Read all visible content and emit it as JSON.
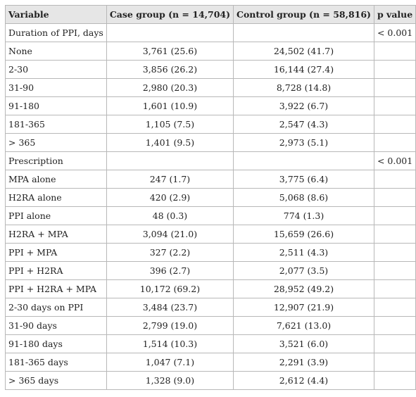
{
  "header": {
    "variable": "Variable",
    "case_group": "Case group (n = 14,704)",
    "control_group": "Control group (n = 58,816)",
    "p_value": "p value"
  },
  "rows": [
    {
      "variable": "Duration of PPI, days",
      "case": "",
      "control": "",
      "p": "< 0.001"
    },
    {
      "variable": "None",
      "case": "3,761 (25.6)",
      "control": "24,502 (41.7)",
      "p": ""
    },
    {
      "variable": "2-30",
      "case": "3,856 (26.2)",
      "control": "16,144 (27.4)",
      "p": ""
    },
    {
      "variable": "31-90",
      "case": "2,980 (20.3)",
      "control": "8,728 (14.8)",
      "p": ""
    },
    {
      "variable": "91-180",
      "case": "1,601 (10.9)",
      "control": "3,922 (6.7)",
      "p": ""
    },
    {
      "variable": "181-365",
      "case": "1,105 (7.5)",
      "control": "2,547 (4.3)",
      "p": ""
    },
    {
      "variable": "> 365",
      "case": "1,401 (9.5)",
      "control": "2,973 (5.1)",
      "p": ""
    },
    {
      "variable": "Prescription",
      "case": "",
      "control": "",
      "p": "< 0.001"
    },
    {
      "variable": "MPA alone",
      "case": "247 (1.7)",
      "control": "3,775 (6.4)",
      "p": ""
    },
    {
      "variable": "H2RA alone",
      "case": "420 (2.9)",
      "control": "5,068 (8.6)",
      "p": ""
    },
    {
      "variable": "PPI alone",
      "case": "48 (0.3)",
      "control": "774 (1.3)",
      "p": ""
    },
    {
      "variable": "H2RA + MPA",
      "case": "3,094 (21.0)",
      "control": "15,659 (26.6)",
      "p": ""
    },
    {
      "variable": "PPI + MPA",
      "case": "327 (2.2)",
      "control": "2,511 (4.3)",
      "p": ""
    },
    {
      "variable": "PPI + H2RA",
      "case": "396 (2.7)",
      "control": "2,077 (3.5)",
      "p": ""
    },
    {
      "variable": "PPI + H2RA + MPA",
      "case": "10,172 (69.2)",
      "control": "28,952 (49.2)",
      "p": ""
    },
    {
      "variable": "2-30 days on PPI",
      "case": "3,484 (23.7)",
      "control": "12,907 (21.9)",
      "p": ""
    },
    {
      "variable": "31-90 days",
      "case": "2,799 (19.0)",
      "control": "7,621 (13.0)",
      "p": ""
    },
    {
      "variable": "91-180 days",
      "case": "1,514 (10.3)",
      "control": "3,521 (6.0)",
      "p": ""
    },
    {
      "variable": "181-365 days",
      "case": "1,047 (7.1)",
      "control": "2,291 (3.9)",
      "p": ""
    },
    {
      "variable": "> 365 days",
      "case": "1,328 (9.0)",
      "control": "2,612 (4.4)",
      "p": ""
    }
  ]
}
